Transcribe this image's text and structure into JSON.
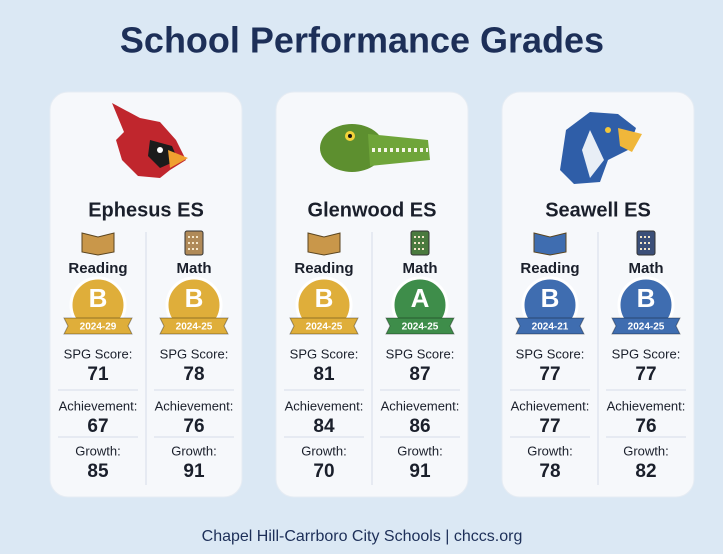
{
  "title": "School Performance Grades",
  "footer": "Chapel Hill-Carrboro City Schools | chccs.org",
  "schools": [
    {
      "name": "Ephesus ES",
      "subjects": [
        {
          "subject": "Reading",
          "grade": "B",
          "year": "2024-29",
          "badge_color": "#dfae3a",
          "spg_label": "SPG Score:",
          "spg": 71,
          "achievement_label": "Achievement:",
          "achievement": 67,
          "growth_label": "Growth:",
          "growth": 85
        },
        {
          "subject": "Math",
          "grade": "B",
          "year": "2024-25",
          "badge_color": "#dfae3a",
          "spg_label": "SPG Score:",
          "spg": 78,
          "achievement_label": "Achievement:",
          "achievement": 76,
          "growth_label": "Growth:",
          "growth": 91
        }
      ]
    },
    {
      "name": "Glenwood ES",
      "subjects": [
        {
          "subject": "Reading",
          "grade": "B",
          "year": "2024-25",
          "badge_color": "#dfae3a",
          "spg_label": "SPG Score:",
          "spg": 81,
          "achievement_label": "Achievement:",
          "achievement": 84,
          "growth_label": "Growth:",
          "growth": 70
        },
        {
          "subject": "Math",
          "grade": "A",
          "year": "2024-25",
          "badge_color": "#3e8d4a",
          "spg_label": "SPG Score:",
          "spg": 87,
          "achievement_label": "Achievement:",
          "achievement": 86,
          "growth_label": "Growth:",
          "growth": 91
        }
      ]
    },
    {
      "name": "Seawell ES",
      "subjects": [
        {
          "subject": "Reading",
          "grade": "B",
          "year": "2024-21",
          "badge_color": "#3f6db0",
          "spg_label": "SPG Score:",
          "spg": 77,
          "achievement_label": "Achievement:",
          "achievement": 77,
          "growth_label": "Growth:",
          "growth": 78
        },
        {
          "subject": "Math",
          "grade": "B",
          "year": "2024-25",
          "badge_color": "#3f6db0",
          "spg_label": "SPG Score:",
          "spg": 77,
          "achievement_label": "Achievement:",
          "achievement": 76,
          "growth_label": "Growth:",
          "growth": 82
        }
      ]
    }
  ]
}
